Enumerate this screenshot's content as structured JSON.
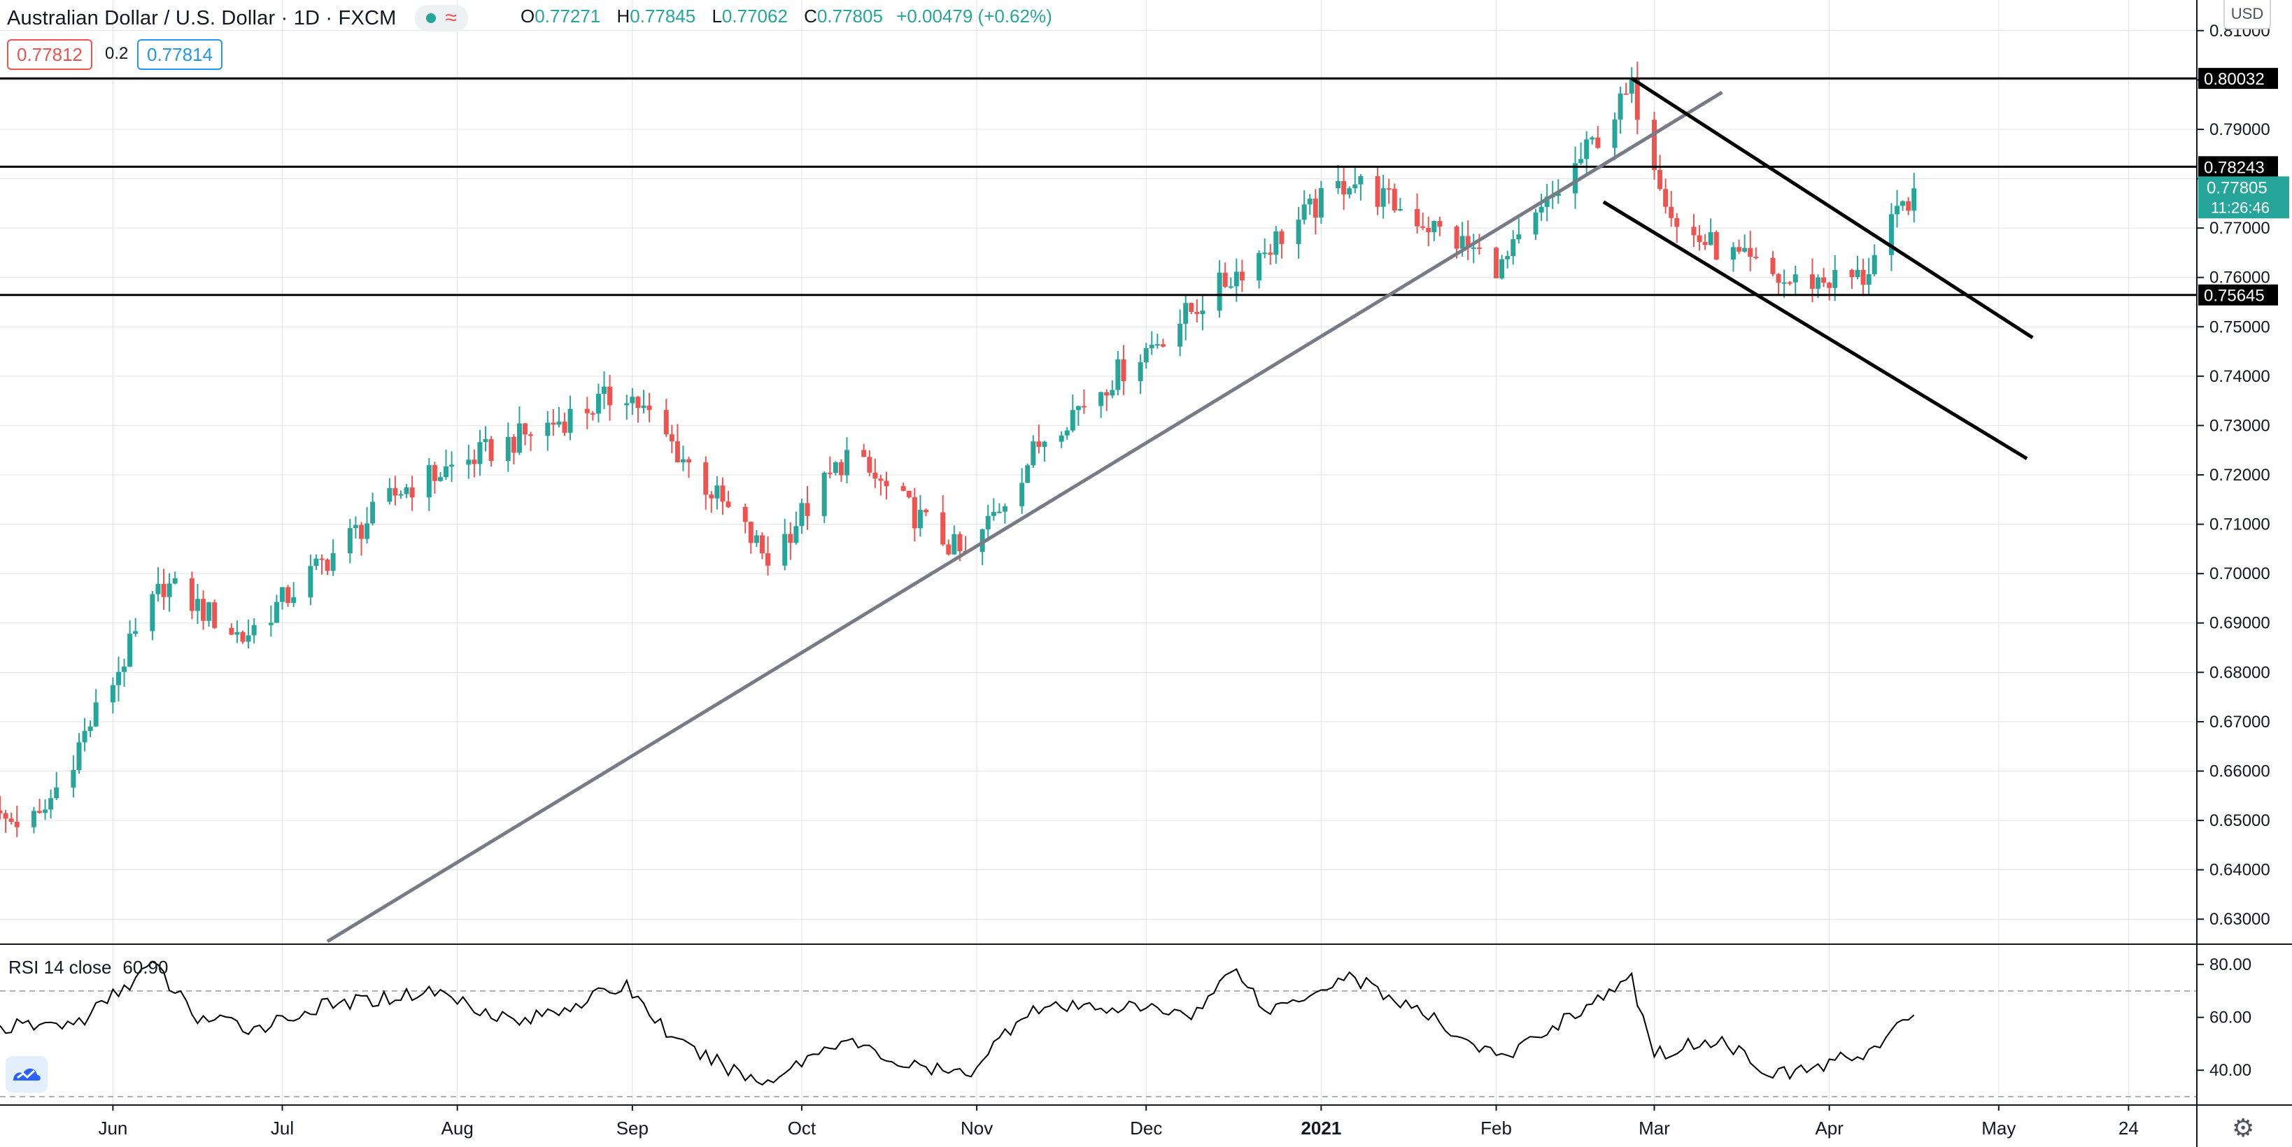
{
  "header": {
    "title": "Australian Dollar / U.S. Dollar · 1D · FXCM",
    "indicator_icon": "candlestick-toggle-icon",
    "open_label": "O",
    "open": "0.77271",
    "high_label": "H",
    "high": "0.77845",
    "low_label": "L",
    "low": "0.77062",
    "close_label": "C",
    "close": "0.77805",
    "change": "+0.00479 (+0.62%)"
  },
  "trade": {
    "sell_price": "0.77812",
    "spread": "0.2",
    "buy_price": "0.77814"
  },
  "currency": "USD",
  "rsi": {
    "label": "RSI 14 close",
    "value": "60.90"
  },
  "price_axis": {
    "ticks": [
      "0.81000",
      "0.80000",
      "0.79000",
      "0.78000",
      "0.77000",
      "0.76000",
      "0.75000",
      "0.74000",
      "0.73000",
      "0.72000",
      "0.71000",
      "0.70000",
      "0.69000",
      "0.68000",
      "0.67000",
      "0.66000",
      "0.65000",
      "0.64000",
      "0.63000"
    ],
    "current_price": "0.77805",
    "countdown": "11:26:46"
  },
  "rsi_axis": {
    "ticks": [
      "80.00",
      "60.00",
      "40.00"
    ]
  },
  "time_axis": {
    "labels": [
      "Jun",
      "Jul",
      "Aug",
      "Sep",
      "Oct",
      "Nov",
      "Dec",
      "2021",
      "Feb",
      "Mar",
      "Apr",
      "May",
      "24"
    ]
  },
  "colors": {
    "up": "#26a69a",
    "down": "#ef5350",
    "trendline": "#787b86",
    "drawing": "#000000",
    "grid": "#e0e3eb"
  },
  "chart_data": {
    "type": "candlestick",
    "symbol": "AUD/USD",
    "interval": "1D",
    "ylim": [
      0.6255,
      0.8145
    ],
    "date_range": [
      "2020-05-12",
      "2021-04-16"
    ],
    "horizontal_lines": [
      {
        "price": 0.80032,
        "label": "0.80032"
      },
      {
        "price": 0.78243,
        "label": "0.78243"
      },
      {
        "price": 0.75645,
        "label": "0.75645"
      }
    ],
    "trend_lines": [
      {
        "style": "gray",
        "from": {
          "date": "2020-07-09",
          "price": 0.6255
        },
        "to": {
          "date": "2021-03-13",
          "price": 0.7975
        }
      },
      {
        "style": "black",
        "from": {
          "date": "2021-02-25",
          "price": 0.8003
        },
        "to": {
          "date": "2021-05-07",
          "price": 0.7478
        }
      },
      {
        "style": "black",
        "from": {
          "date": "2021-02-20",
          "price": 0.7753
        },
        "to": {
          "date": "2021-05-06",
          "price": 0.7233
        }
      }
    ],
    "key_closes": [
      {
        "date": "2020-05-19",
        "close": 0.65
      },
      {
        "date": "2020-06-10",
        "close": 0.698
      },
      {
        "date": "2020-06-24",
        "close": 0.687
      },
      {
        "date": "2020-07-22",
        "close": 0.717
      },
      {
        "date": "2020-08-31",
        "close": 0.737
      },
      {
        "date": "2020-09-25",
        "close": 0.703
      },
      {
        "date": "2020-10-09",
        "close": 0.724
      },
      {
        "date": "2020-10-30",
        "close": 0.703
      },
      {
        "date": "2020-11-13",
        "close": 0.728
      },
      {
        "date": "2020-12-18",
        "close": 0.762
      },
      {
        "date": "2021-01-06",
        "close": 0.78
      },
      {
        "date": "2021-02-02",
        "close": 0.762
      },
      {
        "date": "2021-02-25",
        "close": 0.798
      },
      {
        "date": "2021-03-05",
        "close": 0.77
      },
      {
        "date": "2021-03-24",
        "close": 0.759
      },
      {
        "date": "2021-04-07",
        "close": 0.76
      },
      {
        "date": "2021-04-16",
        "close": 0.77805
      }
    ],
    "rsi": {
      "ylim": [
        30,
        84
      ],
      "bands": [
        70,
        30
      ],
      "points": [
        {
          "date": "2020-05-12",
          "v": 56
        },
        {
          "date": "2020-05-26",
          "v": 58
        },
        {
          "date": "2020-06-08",
          "v": 80
        },
        {
          "date": "2020-06-16",
          "v": 60
        },
        {
          "date": "2020-06-26",
          "v": 56
        },
        {
          "date": "2020-07-08",
          "v": 64
        },
        {
          "date": "2020-07-28",
          "v": 70
        },
        {
          "date": "2020-08-12",
          "v": 58
        },
        {
          "date": "2020-08-31",
          "v": 72
        },
        {
          "date": "2020-09-09",
          "v": 50
        },
        {
          "date": "2020-09-24",
          "v": 35
        },
        {
          "date": "2020-10-08",
          "v": 52
        },
        {
          "date": "2020-10-19",
          "v": 42
        },
        {
          "date": "2020-10-30",
          "v": 38
        },
        {
          "date": "2020-11-10",
          "v": 63
        },
        {
          "date": "2020-11-25",
          "v": 64
        },
        {
          "date": "2020-12-10",
          "v": 62
        },
        {
          "date": "2020-12-17",
          "v": 80
        },
        {
          "date": "2020-12-22",
          "v": 62
        },
        {
          "date": "2021-01-06",
          "v": 76
        },
        {
          "date": "2021-01-20",
          "v": 60
        },
        {
          "date": "2021-02-02",
          "v": 44
        },
        {
          "date": "2021-02-12",
          "v": 58
        },
        {
          "date": "2021-02-25",
          "v": 74
        },
        {
          "date": "2021-03-01",
          "v": 46
        },
        {
          "date": "2021-03-12",
          "v": 52
        },
        {
          "date": "2021-03-23",
          "v": 38
        },
        {
          "date": "2021-03-31",
          "v": 42
        },
        {
          "date": "2021-04-09",
          "v": 48
        },
        {
          "date": "2021-04-16",
          "v": 60.9
        }
      ]
    }
  }
}
